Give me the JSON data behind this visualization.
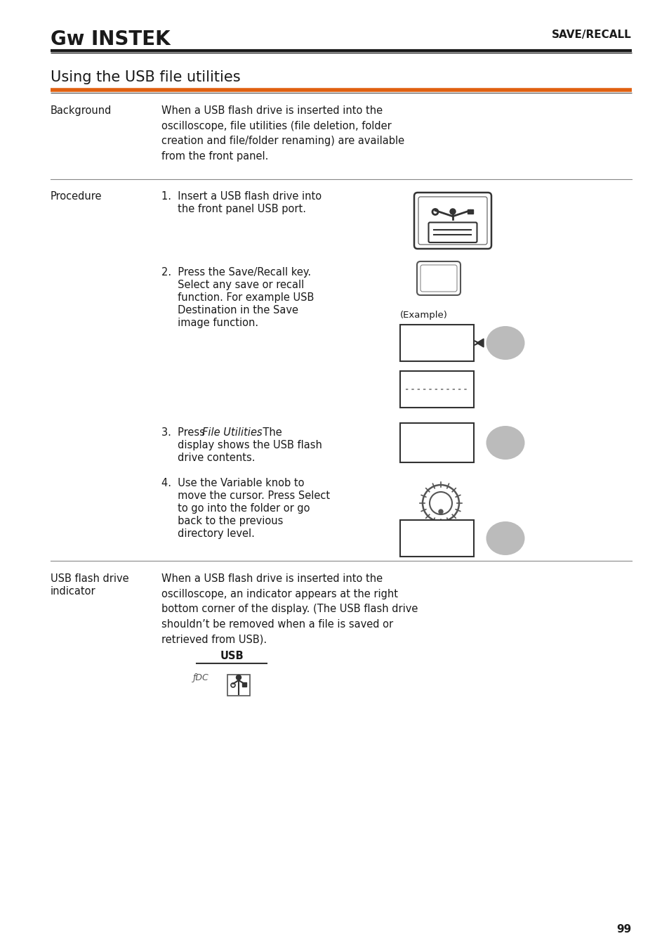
{
  "bg_color": "#ffffff",
  "text_color": "#1a1a1a",
  "orange_color": "#e06010",
  "gray_color": "#aaaaaa",
  "header_right": "SAVE/RECALL",
  "title": "Using the USB file utilities",
  "page_number": "99",
  "background_label": "Background",
  "background_text": "When a USB flash drive is inserted into the\noscilloscope, file utilities (file deletion, folder\ncreation and file/folder renaming) are available\nfrom the front panel.",
  "procedure_label": "Procedure",
  "step1_line1": "1.  Insert a USB flash drive into",
  "step1_line2": "     the front panel USB port.",
  "step2_line1": "2.  Press the Save/Recall key.",
  "step2_line2": "     Select any save or recall",
  "step2_line3": "     function. For example USB",
  "step2_line4": "     Destination in the Save",
  "step2_line5": "     image function.",
  "example_label": "(Example)",
  "step3_pre": "3.  Press ",
  "step3_italic": "File Utilities",
  "step3_post": ". The",
  "step3_line2": "     display shows the USB flash",
  "step3_line3": "     drive contents.",
  "step4_line1": "4.  Use the Variable knob to",
  "step4_line2": "     move the cursor. Press Select",
  "step4_line3": "     to go into the folder or go",
  "step4_line4": "     back to the previous",
  "step4_line5": "     directory level.",
  "usb_label1": "USB flash drive",
  "usb_label2": "indicator",
  "usb_text": "When a USB flash drive is inserted into the\noscilloscope, an indicator appears at the right\nbottom corner of the display. (The USB flash drive\nshouldn’t be removed when a file is saved or\nretrieved from USB).",
  "usb_diag_label": "USB",
  "usb_diag_sub": "ƒDC"
}
